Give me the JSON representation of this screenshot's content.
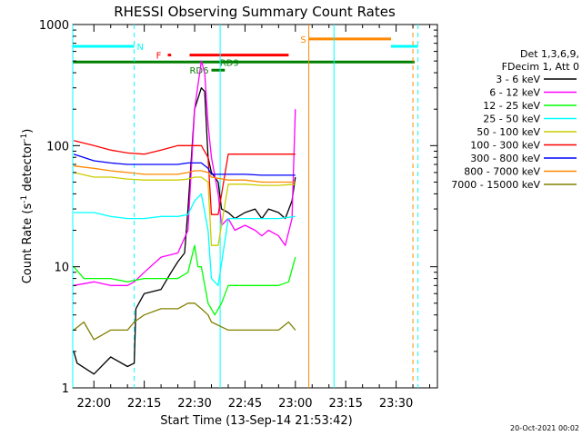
{
  "chart_data": {
    "type": "line",
    "title": "RHESSI Observing Summary Count Rates",
    "xlabel": "Start Time (13-Sep-14 21:53:42)",
    "ylabel_base": "Count Rate (s",
    "ylabel_sup1": "-1",
    "ylabel_mid": " detector",
    "ylabel_sup2": "-1",
    "ylabel_end": ")",
    "y_scale": "log",
    "ylim": [
      1,
      1000
    ],
    "xlim_min": [
      -6.3,
      102.3
    ],
    "x_ticks": [
      {
        "t": 0,
        "label": "22:00"
      },
      {
        "t": 15,
        "label": "22:15"
      },
      {
        "t": 30,
        "label": "22:30"
      },
      {
        "t": 45,
        "label": "22:45"
      },
      {
        "t": 60,
        "label": "23:00"
      },
      {
        "t": 75,
        "label": "23:15"
      },
      {
        "t": 90,
        "label": "23:30"
      }
    ],
    "y_ticks": [
      {
        "v": 1,
        "label": "1"
      },
      {
        "v": 10,
        "label": "10"
      },
      {
        "v": 100,
        "label": "100"
      },
      {
        "v": 1000,
        "label": "1000"
      }
    ],
    "legend_header": [
      "Det 1,3,6,9,",
      "FDecim 1, Att 0"
    ],
    "legend_placement": "right",
    "footer_date": "20-Oct-2021 00:02",
    "series": [
      {
        "name": "3 - 6 keV",
        "color": "#000000",
        "points": [
          [
            -6,
            2
          ],
          [
            -5,
            1.6
          ],
          [
            0,
            1.3
          ],
          [
            5,
            1.8
          ],
          [
            10,
            1.5
          ],
          [
            12,
            1.6
          ],
          [
            12.5,
            4.5
          ],
          [
            15,
            6
          ],
          [
            20,
            6.5
          ],
          [
            23,
            9
          ],
          [
            25,
            11
          ],
          [
            27,
            13
          ],
          [
            28,
            30
          ],
          [
            30,
            200
          ],
          [
            32,
            300
          ],
          [
            33,
            280
          ],
          [
            34,
            80
          ],
          [
            35,
            60
          ],
          [
            37,
            50
          ],
          [
            38,
            30
          ],
          [
            40,
            28
          ],
          [
            42,
            25
          ],
          [
            45,
            28
          ],
          [
            48,
            30
          ],
          [
            50,
            25
          ],
          [
            52,
            30
          ],
          [
            55,
            28
          ],
          [
            57,
            25
          ],
          [
            59,
            35
          ],
          [
            60,
            55
          ]
        ]
      },
      {
        "name": "6 - 12 keV",
        "color": "#ff00ff",
        "points": [
          [
            -6,
            7
          ],
          [
            0,
            7.5
          ],
          [
            5,
            7
          ],
          [
            10,
            7
          ],
          [
            12,
            7.5
          ],
          [
            15,
            9
          ],
          [
            20,
            12
          ],
          [
            25,
            13
          ],
          [
            28,
            20
          ],
          [
            30,
            200
          ],
          [
            32,
            500
          ],
          [
            33,
            400
          ],
          [
            34,
            150
          ],
          [
            35,
            80
          ],
          [
            37,
            40
          ],
          [
            38,
            22
          ],
          [
            40,
            25
          ],
          [
            42,
            20
          ],
          [
            45,
            22
          ],
          [
            48,
            20
          ],
          [
            50,
            18
          ],
          [
            52,
            20
          ],
          [
            55,
            18
          ],
          [
            57,
            15
          ],
          [
            59,
            25
          ],
          [
            60,
            200
          ]
        ]
      },
      {
        "name": "12 - 25 keV",
        "color": "#00ff00",
        "points": [
          [
            -6,
            10
          ],
          [
            -3,
            8
          ],
          [
            0,
            8
          ],
          [
            5,
            8
          ],
          [
            10,
            7.5
          ],
          [
            15,
            8
          ],
          [
            20,
            8
          ],
          [
            25,
            8
          ],
          [
            28,
            9
          ],
          [
            30,
            15
          ],
          [
            31,
            10
          ],
          [
            32,
            10
          ],
          [
            34,
            5
          ],
          [
            36,
            4
          ],
          [
            38,
            5
          ],
          [
            40,
            7
          ],
          [
            45,
            7
          ],
          [
            50,
            7
          ],
          [
            55,
            7
          ],
          [
            58,
            7.5
          ],
          [
            60,
            12
          ]
        ]
      },
      {
        "name": "25 - 50 keV",
        "color": "#00ffff",
        "points": [
          [
            -6,
            28
          ],
          [
            0,
            28
          ],
          [
            5,
            26
          ],
          [
            10,
            25
          ],
          [
            15,
            25
          ],
          [
            20,
            26
          ],
          [
            25,
            26
          ],
          [
            28,
            27
          ],
          [
            30,
            35
          ],
          [
            32,
            40
          ],
          [
            34,
            20
          ],
          [
            35,
            8
          ],
          [
            37,
            7
          ],
          [
            40,
            25
          ],
          [
            45,
            25
          ],
          [
            50,
            25
          ],
          [
            55,
            25
          ],
          [
            60,
            26
          ]
        ]
      },
      {
        "name": "50 - 100 keV",
        "color": "#cccc00",
        "points": [
          [
            -6,
            60
          ],
          [
            0,
            55
          ],
          [
            5,
            55
          ],
          [
            10,
            53
          ],
          [
            15,
            52
          ],
          [
            20,
            52
          ],
          [
            25,
            52
          ],
          [
            28,
            53
          ],
          [
            30,
            55
          ],
          [
            32,
            55
          ],
          [
            34,
            50
          ],
          [
            35,
            15
          ],
          [
            37,
            15
          ],
          [
            40,
            48
          ],
          [
            45,
            48
          ],
          [
            50,
            47
          ],
          [
            55,
            47
          ],
          [
            60,
            48
          ]
        ]
      },
      {
        "name": "100 - 300 keV",
        "color": "#ff0000",
        "points": [
          [
            -6,
            110
          ],
          [
            0,
            100
          ],
          [
            5,
            92
          ],
          [
            10,
            87
          ],
          [
            15,
            85
          ],
          [
            20,
            92
          ],
          [
            25,
            100
          ],
          [
            28,
            100
          ],
          [
            30,
            100
          ],
          [
            32,
            100
          ],
          [
            34,
            80
          ],
          [
            35,
            27
          ],
          [
            37,
            27
          ],
          [
            40,
            85
          ],
          [
            45,
            85
          ],
          [
            50,
            85
          ],
          [
            55,
            85
          ],
          [
            60,
            85
          ]
        ]
      },
      {
        "name": "300 - 800 keV",
        "color": "#0000ff",
        "points": [
          [
            -6,
            85
          ],
          [
            0,
            75
          ],
          [
            5,
            72
          ],
          [
            10,
            70
          ],
          [
            15,
            70
          ],
          [
            20,
            70
          ],
          [
            25,
            70
          ],
          [
            28,
            72
          ],
          [
            30,
            72
          ],
          [
            32,
            72
          ],
          [
            34,
            65
          ],
          [
            35,
            58
          ],
          [
            40,
            58
          ],
          [
            45,
            58
          ],
          [
            50,
            57
          ],
          [
            55,
            57
          ],
          [
            60,
            57
          ]
        ]
      },
      {
        "name": "800 - 7000 keV",
        "color": "#ff8800",
        "points": [
          [
            -6,
            68
          ],
          [
            0,
            65
          ],
          [
            5,
            62
          ],
          [
            10,
            60
          ],
          [
            15,
            58
          ],
          [
            20,
            58
          ],
          [
            25,
            58
          ],
          [
            28,
            60
          ],
          [
            30,
            62
          ],
          [
            32,
            62
          ],
          [
            34,
            60
          ],
          [
            35,
            55
          ],
          [
            40,
            52
          ],
          [
            45,
            52
          ],
          [
            50,
            50
          ],
          [
            55,
            50
          ],
          [
            60,
            50
          ]
        ]
      },
      {
        "name": "7000 - 15000 keV",
        "color": "#808000",
        "points": [
          [
            -6,
            3
          ],
          [
            -3,
            3.5
          ],
          [
            0,
            2.5
          ],
          [
            5,
            3
          ],
          [
            10,
            3
          ],
          [
            12,
            3.5
          ],
          [
            15,
            4
          ],
          [
            20,
            4.5
          ],
          [
            25,
            4.5
          ],
          [
            28,
            5
          ],
          [
            30,
            5
          ],
          [
            32,
            4.5
          ],
          [
            34,
            4
          ],
          [
            35,
            3.5
          ],
          [
            40,
            3
          ],
          [
            45,
            3
          ],
          [
            50,
            3
          ],
          [
            55,
            3
          ],
          [
            58,
            3.5
          ],
          [
            60,
            3
          ]
        ]
      }
    ],
    "flags": [
      {
        "label": "N",
        "color": "#00ffff",
        "value": 660,
        "segments": [
          [
            -6.3,
            12
          ]
        ],
        "label_t": 12.8
      },
      {
        "label": "F",
        "color": "#ff0000",
        "value": 560,
        "segments": [
          [
            22,
            23
          ],
          [
            28.5,
            58
          ]
        ],
        "label_t": 18.5
      },
      {
        "label": "S",
        "color": "#ff8800",
        "value": 760,
        "segments": [
          [
            64,
            88.5
          ]
        ],
        "label_t": 61.5
      },
      {
        "label": "",
        "color": "#00ffff",
        "value": 660,
        "segments": [
          [
            88.5,
            96.5
          ]
        ],
        "label_t": null
      },
      {
        "label": "",
        "color": "#008000",
        "value": 490,
        "segments": [
          [
            -6.3,
            95.5
          ]
        ],
        "label_t": null
      },
      {
        "label": "RD6",
        "color": "#008000",
        "value": 420,
        "segments": [
          [
            35,
            39
          ]
        ],
        "label_t": 28.5
      },
      {
        "label": "RD9",
        "color": "#008000",
        "value": 490,
        "segments": [],
        "label_t": 37.5
      }
    ],
    "vlines": [
      {
        "t": -6.3,
        "color": "#00ffff",
        "style": "solid"
      },
      {
        "t": 12,
        "color": "#00ffff",
        "style": "dashed"
      },
      {
        "t": 37.6,
        "color": "#00ffff",
        "style": "solid"
      },
      {
        "t": 64,
        "color": "#ff8800",
        "style": "solid"
      },
      {
        "t": 71.5,
        "color": "#00ffff",
        "style": "solid"
      },
      {
        "t": 95,
        "color": "#ff8800",
        "style": "dashed"
      },
      {
        "t": 96.5,
        "color": "#00ffff",
        "style": "dashed"
      }
    ]
  }
}
